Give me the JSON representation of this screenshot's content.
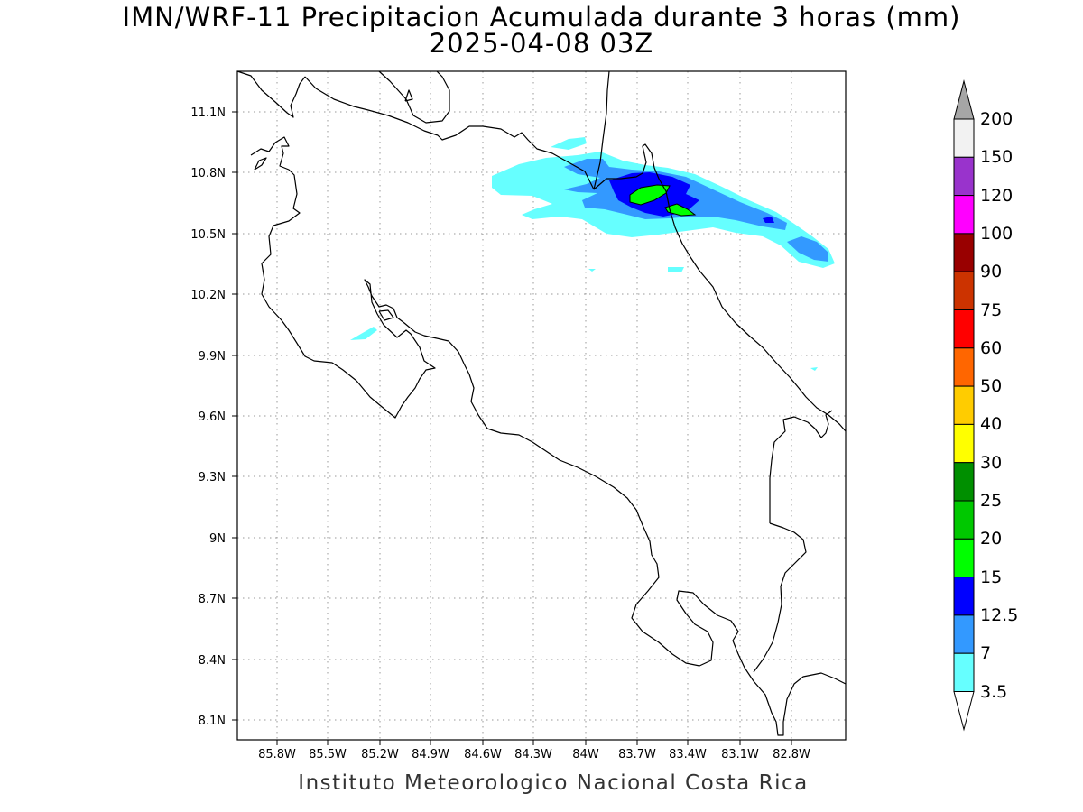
{
  "title": {
    "line1": "IMN/WRF-11 Precipitacion Acumulada durante 3 horas (mm)",
    "line2": "2025-04-08 03Z"
  },
  "credit": "Instituto Meteorologico Nacional Costa Rica",
  "map": {
    "lon_range": [
      -86.05,
      -82.45
    ],
    "lat_range": [
      8.0,
      11.3
    ],
    "lat_ticks": [
      "11.1N",
      "10.8N",
      "10.5N",
      "10.2N",
      "9.9N",
      "9.6N",
      "9.3N",
      "9N",
      "8.7N",
      "8.4N",
      "8.1N"
    ],
    "lon_ticks": [
      "85.8W",
      "85.5W",
      "85.2W",
      "84.9W",
      "84.6W",
      "84.3W",
      "84W",
      "83.7W",
      "83.4W",
      "83.1W",
      "82.8W"
    ],
    "grid": "dotted"
  },
  "colorbar": {
    "labels": [
      "200",
      "150",
      "120",
      "100",
      "90",
      "75",
      "60",
      "50",
      "40",
      "30",
      "25",
      "20",
      "15",
      "12.5",
      "7",
      "3.5"
    ],
    "colors": [
      "#a6a6a6",
      "#f2f2f2",
      "#9933cc",
      "#ff00ff",
      "#990000",
      "#cc3300",
      "#ff0000",
      "#ff6600",
      "#ffcc00",
      "#ffff00",
      "#008f00",
      "#00c800",
      "#00ff00",
      "#0000ff",
      "#3399ff",
      "#66ffff",
      "#ffffff"
    ],
    "extend": "both"
  }
}
